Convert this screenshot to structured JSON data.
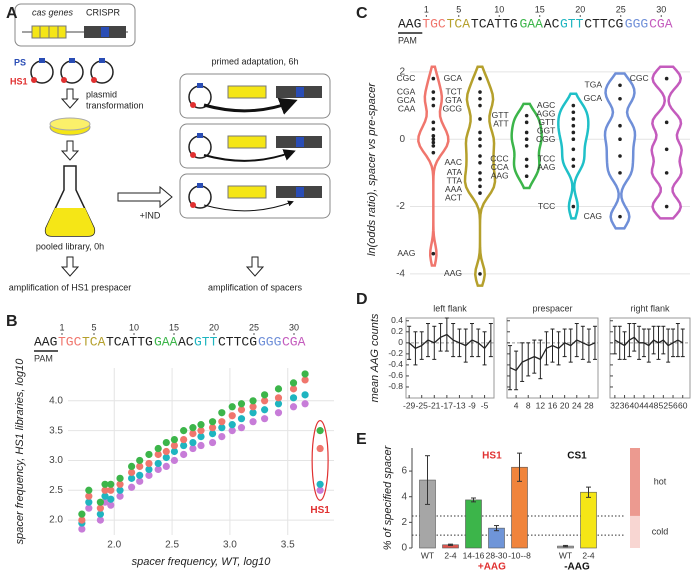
{
  "panel_labels": [
    "A",
    "B",
    "C",
    "D",
    "E"
  ],
  "diagram": {
    "cas_genes": "cas genes",
    "crispr": "CRISPR",
    "ps": "PS",
    "hs1": "HS1",
    "plasmid_transformation": [
      "plasmid",
      "transformation"
    ],
    "pooled_library": "pooled library, 0h",
    "inducer": "+IND",
    "primed_adaptation": "primed adaptation, 6h",
    "amplification_prespacer": "amplification of HS1 prespacer",
    "amplification_spacers": "amplification of spacers"
  },
  "chart_data": [
    {
      "type": "scatter",
      "sequence": {
        "pam_label": "PAM",
        "positions": [
          1,
          5,
          10,
          15,
          20,
          25,
          30
        ],
        "segments": [
          {
            "text": "AAG",
            "color": "#222222"
          },
          {
            "text": "TGC",
            "color": "#f0766d"
          },
          {
            "text": "TCA",
            "color": "#b5a02c"
          },
          {
            "text": "TCATTG",
            "color": "#222222"
          },
          {
            "text": "GAA",
            "color": "#3cb54a"
          },
          {
            "text": "AC",
            "color": "#222222"
          },
          {
            "text": "GTT",
            "color": "#1fb5c0"
          },
          {
            "text": "CTTCG",
            "color": "#222222"
          },
          {
            "text": "GGG",
            "color": "#6f8fd8"
          },
          {
            "text": "CGA",
            "color": "#c45bbd"
          }
        ]
      },
      "x_label": "spacer frequency, WT, log10",
      "y_label": "spacer frequency, HS1 libraries, log10",
      "annotation": "HS1",
      "annotation_color": "#e03030",
      "grid": true,
      "xlim": [
        1.6,
        3.9
      ],
      "ylim": [
        1.75,
        4.55
      ],
      "xticks": [
        {
          "value": 2,
          "label": "2.0"
        },
        2.5,
        {
          "value": 3,
          "label": "3.0"
        },
        3.5
      ],
      "yticks": [
        {
          "value": 2,
          "label": "2.0"
        },
        2.5,
        {
          "value": 3,
          "label": "3.0"
        },
        3.5,
        {
          "value": 4,
          "label": "4.0"
        }
      ],
      "x": [
        1.72,
        1.78,
        1.88,
        1.92,
        1.97,
        2.05,
        2.15,
        2.22,
        2.3,
        2.38,
        2.45,
        2.52,
        2.6,
        2.68,
        2.75,
        2.85,
        2.93,
        3.02,
        3.1,
        3.2,
        3.3,
        3.42,
        3.55,
        3.65,
        3.78
      ],
      "series": [
        {
          "color": "#c77cd8",
          "values": [
            1.85,
            2.2,
            2.0,
            2.3,
            2.25,
            2.4,
            2.55,
            2.65,
            2.75,
            2.85,
            2.9,
            3.0,
            3.1,
            3.2,
            3.25,
            3.3,
            3.4,
            3.5,
            3.55,
            3.65,
            3.7,
            3.8,
            3.9,
            3.95,
            2.5
          ]
        },
        {
          "color": "#1fb5c0",
          "values": [
            1.95,
            2.3,
            2.1,
            2.4,
            2.35,
            2.5,
            2.7,
            2.75,
            2.85,
            2.95,
            3.05,
            3.15,
            3.25,
            3.3,
            3.4,
            3.45,
            3.55,
            3.6,
            3.7,
            3.8,
            3.85,
            3.95,
            4.05,
            4.1,
            2.6
          ]
        },
        {
          "color": "#f0766d",
          "values": [
            2.0,
            2.4,
            2.2,
            2.5,
            2.5,
            2.6,
            2.8,
            2.9,
            2.95,
            3.1,
            3.15,
            3.25,
            3.35,
            3.45,
            3.5,
            3.55,
            3.65,
            3.75,
            3.85,
            3.9,
            4.0,
            4.05,
            4.2,
            4.35,
            3.2
          ]
        },
        {
          "color": "#3cb54a",
          "values": [
            2.1,
            2.5,
            2.3,
            2.6,
            2.6,
            2.7,
            2.9,
            3.0,
            3.1,
            3.2,
            3.3,
            3.35,
            3.5,
            3.55,
            3.6,
            3.65,
            3.8,
            3.9,
            3.95,
            4.0,
            4.1,
            4.2,
            4.3,
            4.45,
            3.5
          ]
        }
      ]
    },
    {
      "type": "violin",
      "sequence": {
        "pam_label": "PAM",
        "positions": [
          1,
          5,
          10,
          15,
          20,
          25,
          30
        ],
        "segments": [
          {
            "text": "AAG",
            "color": "#222222"
          },
          {
            "text": "TGC",
            "color": "#f0766d"
          },
          {
            "text": "TCA",
            "color": "#b5a02c"
          },
          {
            "text": "TCATTG",
            "color": "#222222"
          },
          {
            "text": "GAA",
            "color": "#3cb54a"
          },
          {
            "text": "AC",
            "color": "#222222"
          },
          {
            "text": "GTT",
            "color": "#1fb5c0"
          },
          {
            "text": "CTTCG",
            "color": "#222222"
          },
          {
            "text": "GGG",
            "color": "#6f8fd8"
          },
          {
            "text": "CGA",
            "color": "#c45bbd"
          }
        ]
      },
      "y_label": "ln(odds ratio), spacer vs pre-spacer",
      "grid": true,
      "ylim": [
        -4.3,
        2.5
      ],
      "yticks": [
        -4,
        -2,
        0,
        2
      ],
      "groups": [
        {
          "color": "#f0766d",
          "values": [
            1.8,
            1.4,
            1.2,
            1.0,
            0.5,
            0.3,
            0.1,
            0,
            -0.1,
            -0.2,
            -0.4,
            -3.4
          ],
          "point_labels": [
            "CGC",
            "CGA",
            "GCA",
            "CAA",
            null,
            null,
            null,
            null,
            null,
            null,
            null,
            "AAG"
          ]
        },
        {
          "color": "#b5a02c",
          "values": [
            1.8,
            1.4,
            1.2,
            1.0,
            0.6,
            0.2,
            0,
            -0.2,
            -0.5,
            -0.7,
            -1.0,
            -1.2,
            -1.4,
            -1.6,
            -4.0
          ],
          "point_labels": [
            "GCA",
            "TCT",
            "GTA",
            "GCG",
            null,
            null,
            null,
            null,
            null,
            "AAC",
            "ATA",
            "TTA",
            "AAA",
            "ACT",
            "AAG"
          ]
        },
        {
          "color": "#3cb54a",
          "values": [
            0.7,
            0.5,
            0.2,
            0,
            -0.2,
            -0.6,
            -0.8,
            -1.1
          ],
          "point_labels": [
            "GTT",
            "ATT",
            null,
            null,
            null,
            "CCC",
            "CCA",
            "AAG"
          ]
        },
        {
          "color": "#1fc0c8",
          "values": [
            1.0,
            0.8,
            0.6,
            0.4,
            0.2,
            0,
            -0.3,
            -0.6,
            -0.8,
            -2.0
          ],
          "point_labels": [
            "AGC",
            "AGG",
            "GTT",
            "GGT",
            "CGG",
            null,
            null,
            "TCC",
            "AAG",
            "TCC"
          ]
        },
        {
          "color": "#6f8fd8",
          "values": [
            1.6,
            1.2,
            0.4,
            0,
            -0.5,
            -1.0,
            -2.3
          ],
          "point_labels": [
            "TGA",
            "GCA",
            null,
            null,
            null,
            null,
            "CAG"
          ]
        },
        {
          "color": "#c45bbd",
          "values": [
            1.8,
            0.5,
            -0.3,
            -1.0,
            -2.0
          ],
          "point_labels": [
            "CGC",
            null,
            null,
            null,
            null
          ]
        }
      ]
    },
    {
      "type": "line",
      "y_label": "mean AAG counts",
      "reference_line": 0,
      "ylim": [
        -1,
        0.45
      ],
      "yticks": [
        -0.8,
        -0.6,
        -0.4,
        -0.2,
        0,
        0.2,
        0.4
      ],
      "panels": [
        {
          "title": "left flank",
          "xlim": [
            -30,
            -2
          ],
          "xticks": [
            -29,
            -25,
            -21,
            -17,
            -13,
            -9,
            -5
          ],
          "x": [
            -29,
            -27,
            -25,
            -23,
            -21,
            -19,
            -17,
            -15,
            -13,
            -11,
            -9,
            -7,
            -5,
            -3
          ],
          "values": [
            0,
            -0.1,
            -0.05,
            0.05,
            0,
            0.1,
            0.15,
            0.05,
            0,
            -0.05,
            0.05,
            0,
            -0.1,
            0.05
          ],
          "errors": [
            0.3,
            0.3,
            0.25,
            0.3,
            0.3,
            0.25,
            0.3,
            0.3,
            0.25,
            0.3,
            0.3,
            0.25,
            0.3,
            0.3
          ]
        },
        {
          "title": "prespacer",
          "xlim": [
            1,
            31
          ],
          "xticks": [
            4,
            8,
            12,
            16,
            20,
            24,
            28
          ],
          "x": [
            2,
            4,
            6,
            8,
            10,
            12,
            14,
            16,
            18,
            20,
            22,
            24,
            26,
            28,
            30
          ],
          "values": [
            -0.45,
            -0.5,
            -0.35,
            -0.3,
            -0.25,
            -0.3,
            -0.1,
            -0.05,
            -0.1,
            0,
            -0.05,
            0.05,
            0,
            -0.05,
            0
          ],
          "errors": [
            0.4,
            0.35,
            0.35,
            0.3,
            0.3,
            0.35,
            0.3,
            0.3,
            0.3,
            0.25,
            0.3,
            0.3,
            0.3,
            0.3,
            0.3
          ]
        },
        {
          "title": "right flank",
          "xlim": [
            30,
            63
          ],
          "xticks": [
            32,
            36,
            40,
            44,
            48,
            52,
            56,
            60
          ],
          "x": [
            32,
            34,
            36,
            38,
            40,
            42,
            44,
            46,
            48,
            50,
            52,
            54,
            56,
            58,
            60
          ],
          "values": [
            0.05,
            0,
            -0.05,
            0.05,
            0.1,
            0,
            0,
            -0.05,
            0.05,
            0,
            0.05,
            -0.05,
            0,
            0.05,
            0
          ],
          "errors": [
            0.25,
            0.3,
            0.25,
            0.3,
            0.25,
            0.3,
            0.25,
            0.3,
            0.25,
            0.3,
            0.25,
            0.3,
            0.25,
            0.3,
            0.25
          ]
        }
      ]
    },
    {
      "type": "bar",
      "y_label": "% of specified spacer",
      "ylim": [
        0,
        7.8
      ],
      "yticks": [
        0,
        2,
        4,
        6
      ],
      "reference_lines": [
        1,
        2.5
      ],
      "zones": [
        {
          "label": "hot",
          "range": [
            2.5,
            7.8
          ],
          "color": "#ec9a90"
        },
        {
          "label": "cold",
          "range": [
            0,
            2.5
          ],
          "color": "#f8d6d2"
        }
      ],
      "groups": [
        {
          "name": "HS1",
          "condition": "+AAG",
          "color": "#e03030",
          "categories": [
            "WT",
            "2-4",
            "14-16",
            "28-30",
            "-10--8"
          ],
          "values": [
            5.3,
            0.25,
            3.75,
            1.55,
            6.3
          ],
          "errors": [
            1.9,
            0.05,
            0.15,
            0.2,
            1.1
          ],
          "colors": [
            "#a6a6a6",
            "#e0574f",
            "#3cb54a",
            "#6f95d8",
            "#f0843c"
          ]
        },
        {
          "name": "CS1",
          "condition": "-AAG",
          "color": "#111111",
          "categories": [
            "WT",
            "2-4"
          ],
          "values": [
            0.15,
            4.35
          ],
          "errors": [
            0.05,
            0.4
          ],
          "colors": [
            "#a6a6a6",
            "#f5e616"
          ]
        }
      ]
    }
  ]
}
